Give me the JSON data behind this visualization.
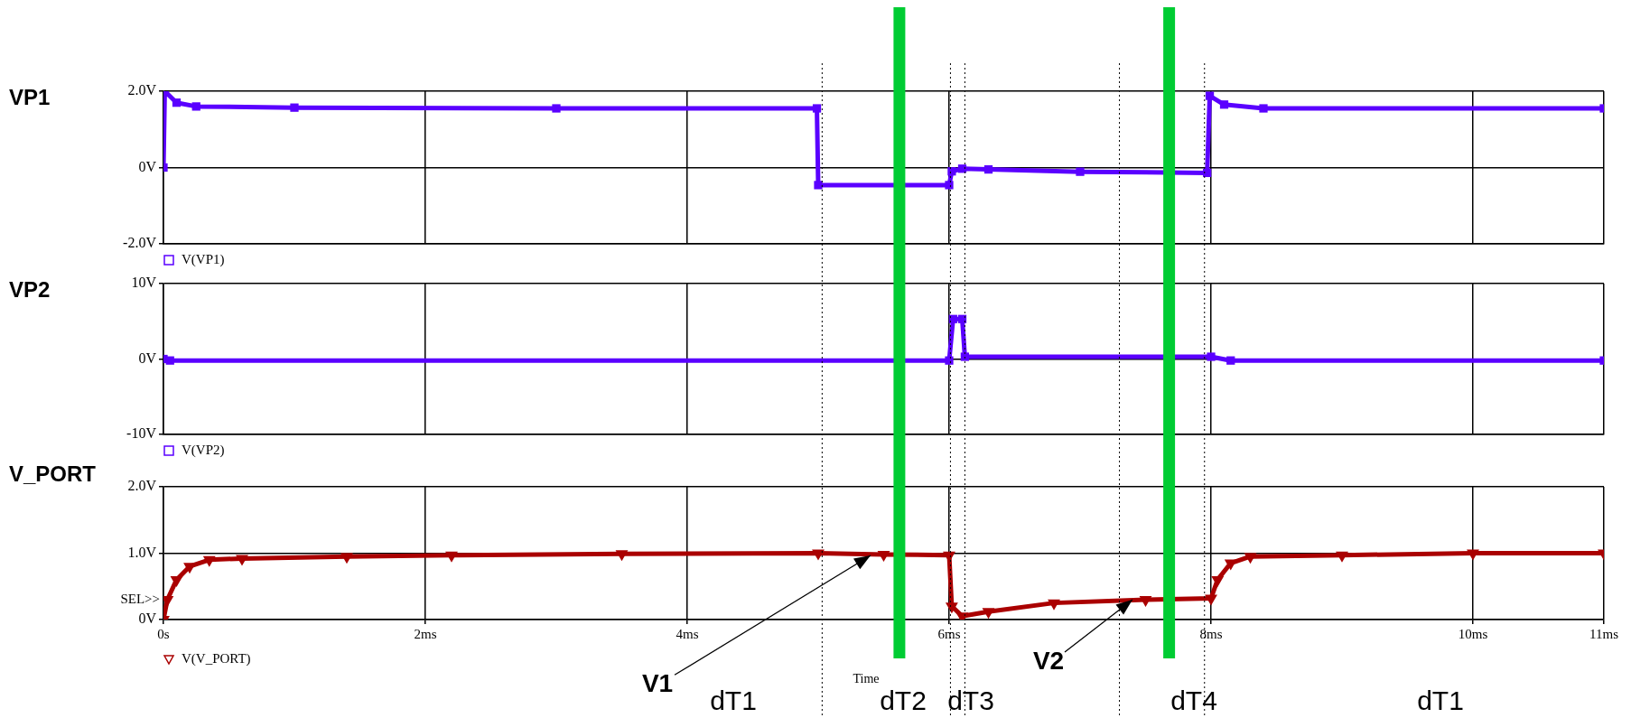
{
  "chart_data": [
    {
      "type": "line",
      "title": "VP1",
      "x": [
        0,
        0.01,
        0.1,
        0.25,
        1,
        3,
        4.99,
        5.0,
        6.0,
        6.02,
        6.1,
        6.3,
        7.0,
        7.97,
        7.99,
        8.1,
        8.4,
        11
      ],
      "series": [
        {
          "name": "V(VP1)",
          "color": "#5a00ff",
          "values": [
            0,
            2.0,
            1.7,
            1.6,
            1.57,
            1.55,
            1.55,
            -0.46,
            -0.46,
            -0.1,
            -0.03,
            -0.05,
            -0.11,
            -0.14,
            1.88,
            1.65,
            1.55,
            1.55
          ]
        }
      ],
      "xlim": [
        0,
        11
      ],
      "xticks": [
        0,
        2,
        4,
        6,
        8,
        10,
        11
      ],
      "ylim": [
        -2,
        2
      ],
      "yticks": [
        {
          "value": -2,
          "label": "-2.0V"
        },
        {
          "value": 0,
          "label": "0V"
        },
        {
          "value": 2,
          "label": "2.0V"
        }
      ],
      "tick_labels": "y",
      "grid": true,
      "legend": "bottom left",
      "marker": "square",
      "ref_lines": [
        {
          "axis": "x",
          "value": 5.03,
          "color": "#000000",
          "line_style": "dotted"
        },
        {
          "axis": "x",
          "value": 5.62,
          "color": "#00cc33"
        },
        {
          "axis": "x",
          "value": 6.01,
          "color": "#000000",
          "line_style": "dotted"
        },
        {
          "axis": "x",
          "value": 6.12,
          "color": "#000000",
          "line_style": "dotted"
        },
        {
          "axis": "x",
          "value": 7.3,
          "color": "#000000",
          "line_style": "dotted"
        },
        {
          "axis": "x",
          "value": 7.68,
          "color": "#00cc33"
        },
        {
          "axis": "x",
          "value": 7.95,
          "color": "#000000",
          "line_style": "dotted"
        }
      ]
    },
    {
      "type": "line",
      "title": "VP2",
      "x": [
        0,
        0.05,
        6.0,
        6.03,
        6.1,
        6.12,
        8.0,
        8.15,
        11
      ],
      "series": [
        {
          "name": "V(VP2)",
          "color": "#5a00ff",
          "values": [
            0,
            -0.2,
            -0.2,
            5.3,
            5.3,
            0.3,
            0.3,
            -0.2,
            -0.2
          ]
        }
      ],
      "xlim": [
        0,
        11
      ],
      "xticks": [
        0,
        2,
        4,
        6,
        8,
        10,
        11
      ],
      "ylim": [
        -10,
        10
      ],
      "yticks": [
        {
          "value": -10,
          "label": "-10V"
        },
        {
          "value": 0,
          "label": "0V"
        },
        {
          "value": 10,
          "label": "10V"
        }
      ],
      "tick_labels": "y",
      "grid": true,
      "legend": "bottom left",
      "marker": "square",
      "ref_lines": [
        {
          "axis": "x",
          "value": 5.03,
          "color": "#000000",
          "line_style": "dotted"
        },
        {
          "axis": "x",
          "value": 5.62,
          "color": "#00cc33"
        },
        {
          "axis": "x",
          "value": 6.01,
          "color": "#000000",
          "line_style": "dotted"
        },
        {
          "axis": "x",
          "value": 6.12,
          "color": "#000000",
          "line_style": "dotted"
        },
        {
          "axis": "x",
          "value": 7.3,
          "color": "#000000",
          "line_style": "dotted"
        },
        {
          "axis": "x",
          "value": 7.68,
          "color": "#00cc33"
        },
        {
          "axis": "x",
          "value": 7.95,
          "color": "#000000",
          "line_style": "dotted"
        }
      ]
    },
    {
      "type": "line",
      "title": "V_PORT",
      "xlabel": "Time",
      "x": [
        0,
        0.03,
        0.1,
        0.2,
        0.35,
        0.6,
        1.4,
        2.2,
        3.5,
        5.0,
        5.5,
        6.0,
        6.02,
        6.1,
        6.3,
        6.8,
        7.5,
        8.0,
        8.05,
        8.15,
        8.3,
        9.0,
        10,
        11
      ],
      "series": [
        {
          "name": "V(V_PORT)",
          "color": "#aa0000",
          "values": [
            0,
            0.3,
            0.6,
            0.8,
            0.9,
            0.92,
            0.95,
            0.97,
            0.99,
            1.0,
            0.98,
            0.97,
            0.2,
            0.05,
            0.12,
            0.25,
            0.3,
            0.32,
            0.6,
            0.85,
            0.95,
            0.97,
            1.0,
            1.0
          ]
        }
      ],
      "xlim": [
        0,
        11
      ],
      "xticks": [
        {
          "value": 0,
          "label": "0s"
        },
        {
          "value": 2,
          "label": "2ms"
        },
        {
          "value": 4,
          "label": "4ms"
        },
        {
          "value": 6,
          "label": "6ms"
        },
        {
          "value": 8,
          "label": "8ms"
        },
        {
          "value": 10,
          "label": "10ms"
        },
        {
          "value": 11,
          "label": "11ms"
        }
      ],
      "ylim": [
        0,
        2
      ],
      "yticks": [
        {
          "value": 0,
          "label": "0V"
        },
        {
          "value": 1,
          "label": "1.0V"
        },
        {
          "value": 2,
          "label": "2.0V"
        }
      ],
      "grid": true,
      "legend": "bottom left",
      "marker": "triangle",
      "ref_lines": [
        {
          "axis": "x",
          "value": 5.03,
          "color": "#000000",
          "line_style": "dotted"
        },
        {
          "axis": "x",
          "value": 5.62,
          "color": "#00cc33"
        },
        {
          "axis": "x",
          "value": 6.01,
          "color": "#000000",
          "line_style": "dotted"
        },
        {
          "axis": "x",
          "value": 6.12,
          "color": "#000000",
          "line_style": "dotted"
        },
        {
          "axis": "x",
          "value": 7.3,
          "color": "#000000",
          "line_style": "dotted"
        },
        {
          "axis": "x",
          "value": 7.68,
          "color": "#00cc33"
        },
        {
          "axis": "x",
          "value": 7.95,
          "color": "#000000",
          "line_style": "dotted"
        }
      ],
      "annotations": [
        "SEL>>",
        {
          "text": "V1",
          "x": 5.4,
          "y": 0.97
        },
        {
          "text": "V2",
          "x": 7.4,
          "y": 0.3
        },
        "dT1",
        "dT2",
        "dT3",
        "dT4",
        "dT1"
      ]
    }
  ]
}
